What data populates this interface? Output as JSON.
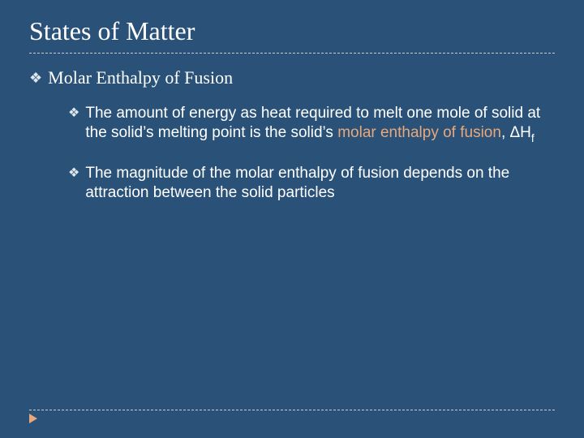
{
  "colors": {
    "background": "#2a5278",
    "text": "#ffffff",
    "highlight": "#e8a87c",
    "divider": "#cccccc",
    "bullet": "#dfe6ec"
  },
  "title": "States of Matter",
  "bullet_glyph": "❖",
  "level1": {
    "text": "Molar Enthalpy of Fusion"
  },
  "level2": [
    {
      "pre": "The amount of energy as heat required to melt one mole of solid at the solid’s melting point is the solid’s ",
      "highlight": "molar enthalpy of fusion",
      "post": ", ΔH",
      "sub": "f"
    },
    {
      "pre": "The magnitude of the molar enthalpy of fusion depends on the attraction between the solid particles",
      "highlight": "",
      "post": "",
      "sub": ""
    }
  ]
}
